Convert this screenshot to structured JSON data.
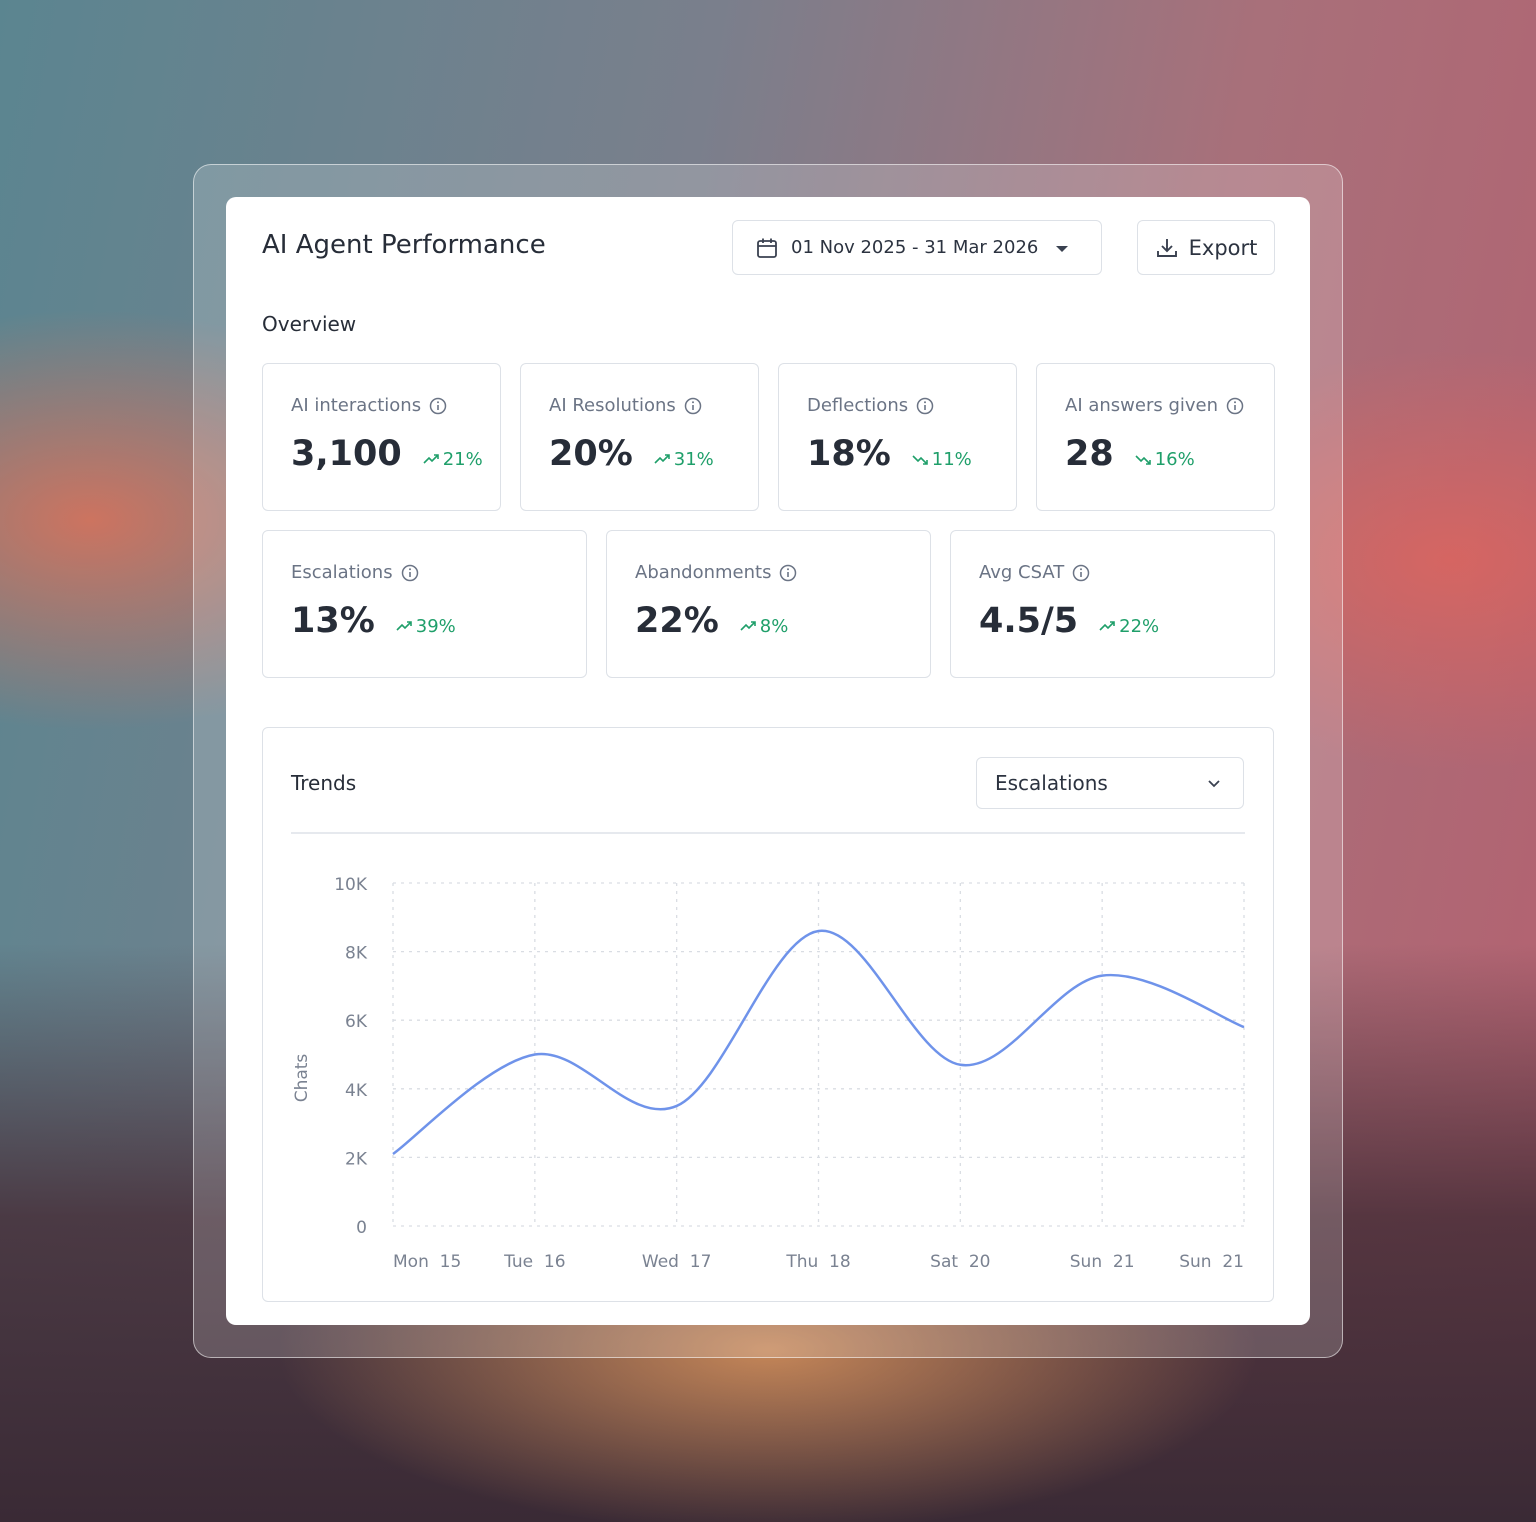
{
  "header": {
    "title": "AI Agent Performance",
    "date_range": "01 Nov 2025 - 31 Mar 2026",
    "export": "Export"
  },
  "overview": {
    "title": "Overview",
    "rows": [
      [
        {
          "label": "AI interactions",
          "value": "3,100",
          "delta": "21%",
          "trend": "up"
        },
        {
          "label": "AI Resolutions",
          "value": "20%",
          "delta": "31%",
          "trend": "up"
        },
        {
          "label": "Deflections",
          "value": "18%",
          "delta": "11%",
          "trend": "down"
        },
        {
          "label": "AI answers given",
          "value": "28",
          "delta": "16%",
          "trend": "down"
        }
      ],
      [
        {
          "label": "Escalations",
          "value": "13%",
          "delta": "39%",
          "trend": "up"
        },
        {
          "label": "Abandonments",
          "value": "22%",
          "delta": "8%",
          "trend": "up"
        },
        {
          "label": "Avg CSAT",
          "value": "4.5/5",
          "delta": "22%",
          "trend": "up"
        }
      ]
    ]
  },
  "trends": {
    "title": "Trends",
    "selector": "Escalations"
  },
  "chart_data": {
    "type": "line",
    "y_label": "Chats",
    "categories": [
      "Mon  15",
      "Tue  16",
      "Wed  17",
      "Thu  18",
      "Sat  20",
      "Sun  21",
      "Sun  21"
    ],
    "values": [
      2100,
      5000,
      3500,
      8600,
      4700,
      7300,
      5800
    ],
    "color": "#6f93ea",
    "ylim": [
      0,
      10000
    ],
    "yticks": [
      0,
      {
        "value": 2000,
        "label": "2K"
      },
      {
        "value": 4000,
        "label": "4K"
      },
      {
        "value": 6000,
        "label": "6K"
      },
      {
        "value": 8000,
        "label": "8K"
      },
      {
        "value": 10000,
        "label": "10K"
      }
    ],
    "grid": true
  }
}
